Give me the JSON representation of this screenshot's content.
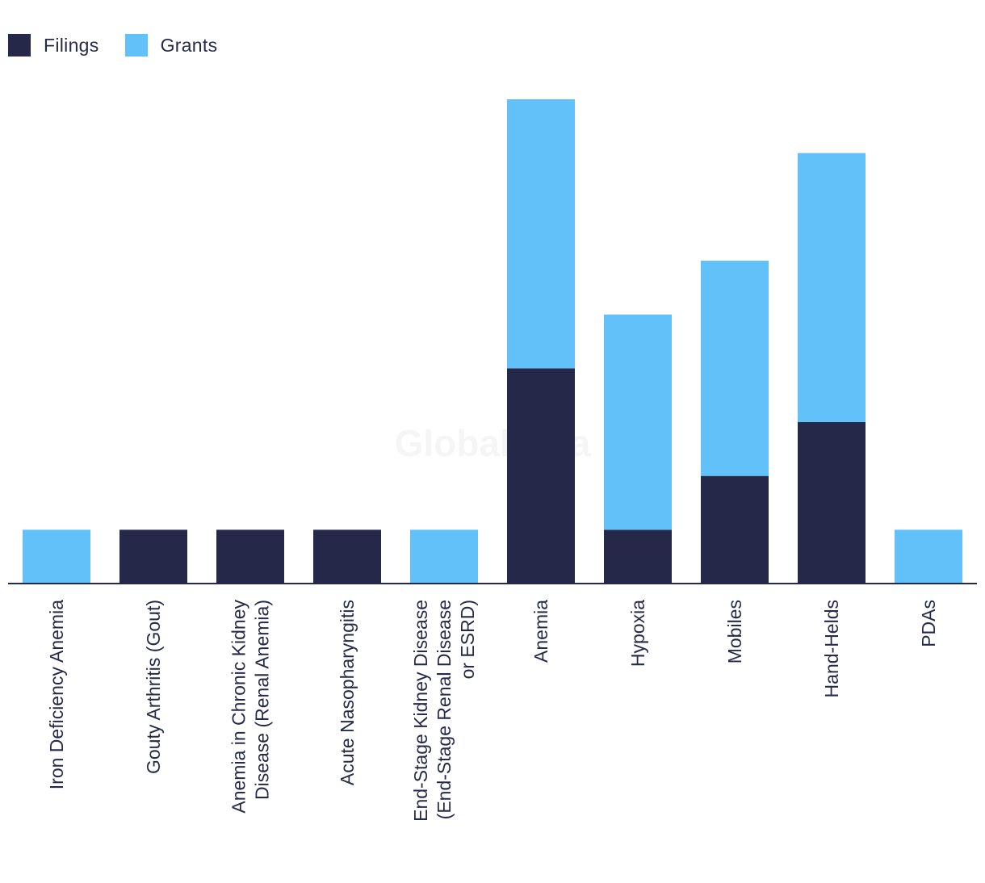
{
  "chart_data": {
    "type": "bar",
    "stacked": true,
    "categories": [
      [
        "Iron Deficiency Anemia"
      ],
      [
        "Gouty Arthritis (Gout)"
      ],
      [
        "Anemia in Chronic Kidney",
        "Disease (Renal Anemia)"
      ],
      [
        "Acute Nasopharyngitis"
      ],
      [
        "End-Stage Kidney Disease",
        "(End-Stage Renal Disease",
        "or ESRD)"
      ],
      [
        "Anemia"
      ],
      [
        "Hypoxia"
      ],
      [
        "Mobiles"
      ],
      [
        "Hand-Helds"
      ],
      [
        "PDAs"
      ]
    ],
    "series": [
      {
        "name": "Filings",
        "color": "#262849",
        "values": [
          0,
          1,
          1,
          1,
          0,
          4,
          1,
          2,
          3,
          0
        ]
      },
      {
        "name": "Grants",
        "color": "#62c1f9",
        "values": [
          1,
          0,
          0,
          0,
          1,
          5,
          4,
          4,
          5,
          1
        ]
      }
    ],
    "ylim": [
      0,
      9
    ],
    "grid": false,
    "legend_position": "top-left",
    "watermark": "GlobalData"
  }
}
